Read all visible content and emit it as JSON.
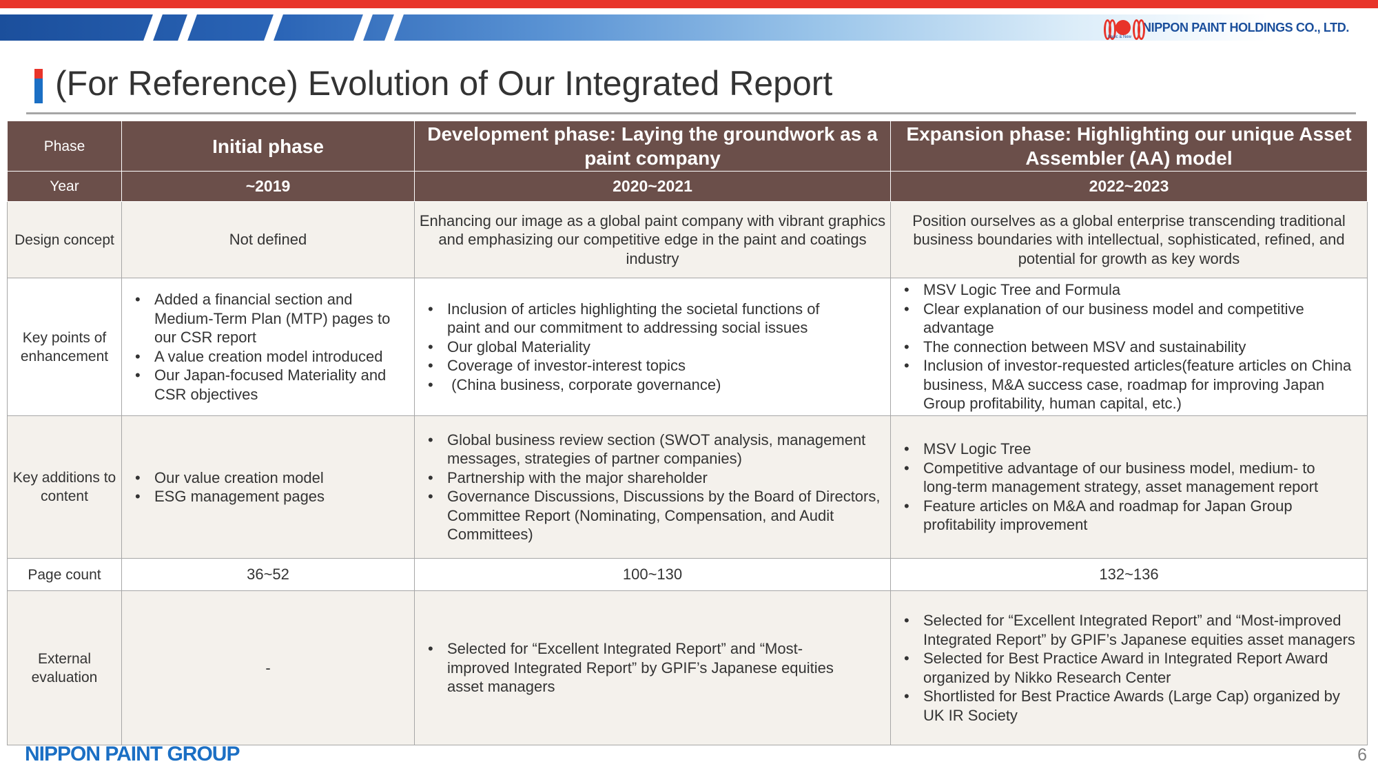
{
  "header": {
    "company_name": "NIPPON PAINT HOLDINGS CO., LTD.",
    "logo_tagline": "Basic & New",
    "brand_colors": {
      "red": "#e8342a",
      "blue": "#1b4f9c",
      "header_fill": "#6b4f4a"
    }
  },
  "title": "(For Reference) Evolution of Our Integrated Report",
  "table": {
    "row_labels": {
      "phase": "Phase",
      "year": "Year",
      "design_concept": "Design concept",
      "key_points": "Key points of enhancement",
      "key_additions": "Key additions to content",
      "page_count": "Page count",
      "external_evaluation": "External evaluation"
    },
    "columns": [
      {
        "phase": "Initial phase",
        "year": "~2019",
        "design_concept": "Not defined",
        "key_points": [
          "Added a financial section and Medium-Term Plan (MTP) pages to our CSR report",
          "A value creation model introduced",
          "Our Japan-focused Materiality and CSR objectives"
        ],
        "key_additions": [
          "Our value creation model",
          "ESG management pages"
        ],
        "page_count": "36~52",
        "external_evaluation": "-"
      },
      {
        "phase": "Development phase: Laying the groundwork as a paint company",
        "year": "2020~2021",
        "design_concept": "Enhancing our image as a global paint company with vibrant graphics and emphasizing our competitive edge in the paint and coatings industry",
        "key_points": [
          "Inclusion of articles highlighting the societal functions of paint and our commitment to addressing social issues",
          "Our global Materiality",
          "Coverage of investor-interest topics",
          " (China business, corporate governance)"
        ],
        "key_additions": [
          "Global business review section (SWOT analysis, management messages, strategies of partner companies)",
          "Partnership with the major shareholder",
          "Governance Discussions, Discussions by the Board of Directors, Committee Report (Nominating, Compensation, and Audit Committees)"
        ],
        "page_count": "100~130",
        "external_evaluation": [
          "Selected for “Excellent Integrated Report” and “Most-improved Integrated Report” by GPIF’s Japanese equities asset managers"
        ]
      },
      {
        "phase": "Expansion phase: Highlighting our unique Asset Assembler (AA) model",
        "year": "2022~2023",
        "design_concept": "Position ourselves as a global enterprise transcending traditional business boundaries with intellectual, sophisticated, refined, and potential for growth as key words",
        "key_points": [
          "MSV Logic Tree and Formula",
          "Clear explanation of our business model and competitive advantage",
          "The connection between MSV and sustainability",
          "Inclusion of investor-requested articles(feature articles on China business, M&A success case, roadmap for improving Japan Group profitability, human capital, etc.)"
        ],
        "key_additions": [
          "MSV Logic Tree",
          "Competitive advantage of our business model, medium- to long-term management strategy, asset management report",
          "Feature articles on M&A and roadmap for Japan Group profitability improvement"
        ],
        "page_count": "132~136",
        "external_evaluation": [
          "Selected for “Excellent Integrated Report” and “Most-improved Integrated Report” by GPIF’s Japanese equities asset managers",
          "Selected for Best Practice Award in Integrated Report Award organized by Nikko Research Center",
          "Shortlisted for Best Practice Awards (Large Cap) organized by UK IR Society"
        ]
      }
    ]
  },
  "footer": {
    "group_logo": "NIPPON PAINT GROUP",
    "page_number": "6"
  }
}
